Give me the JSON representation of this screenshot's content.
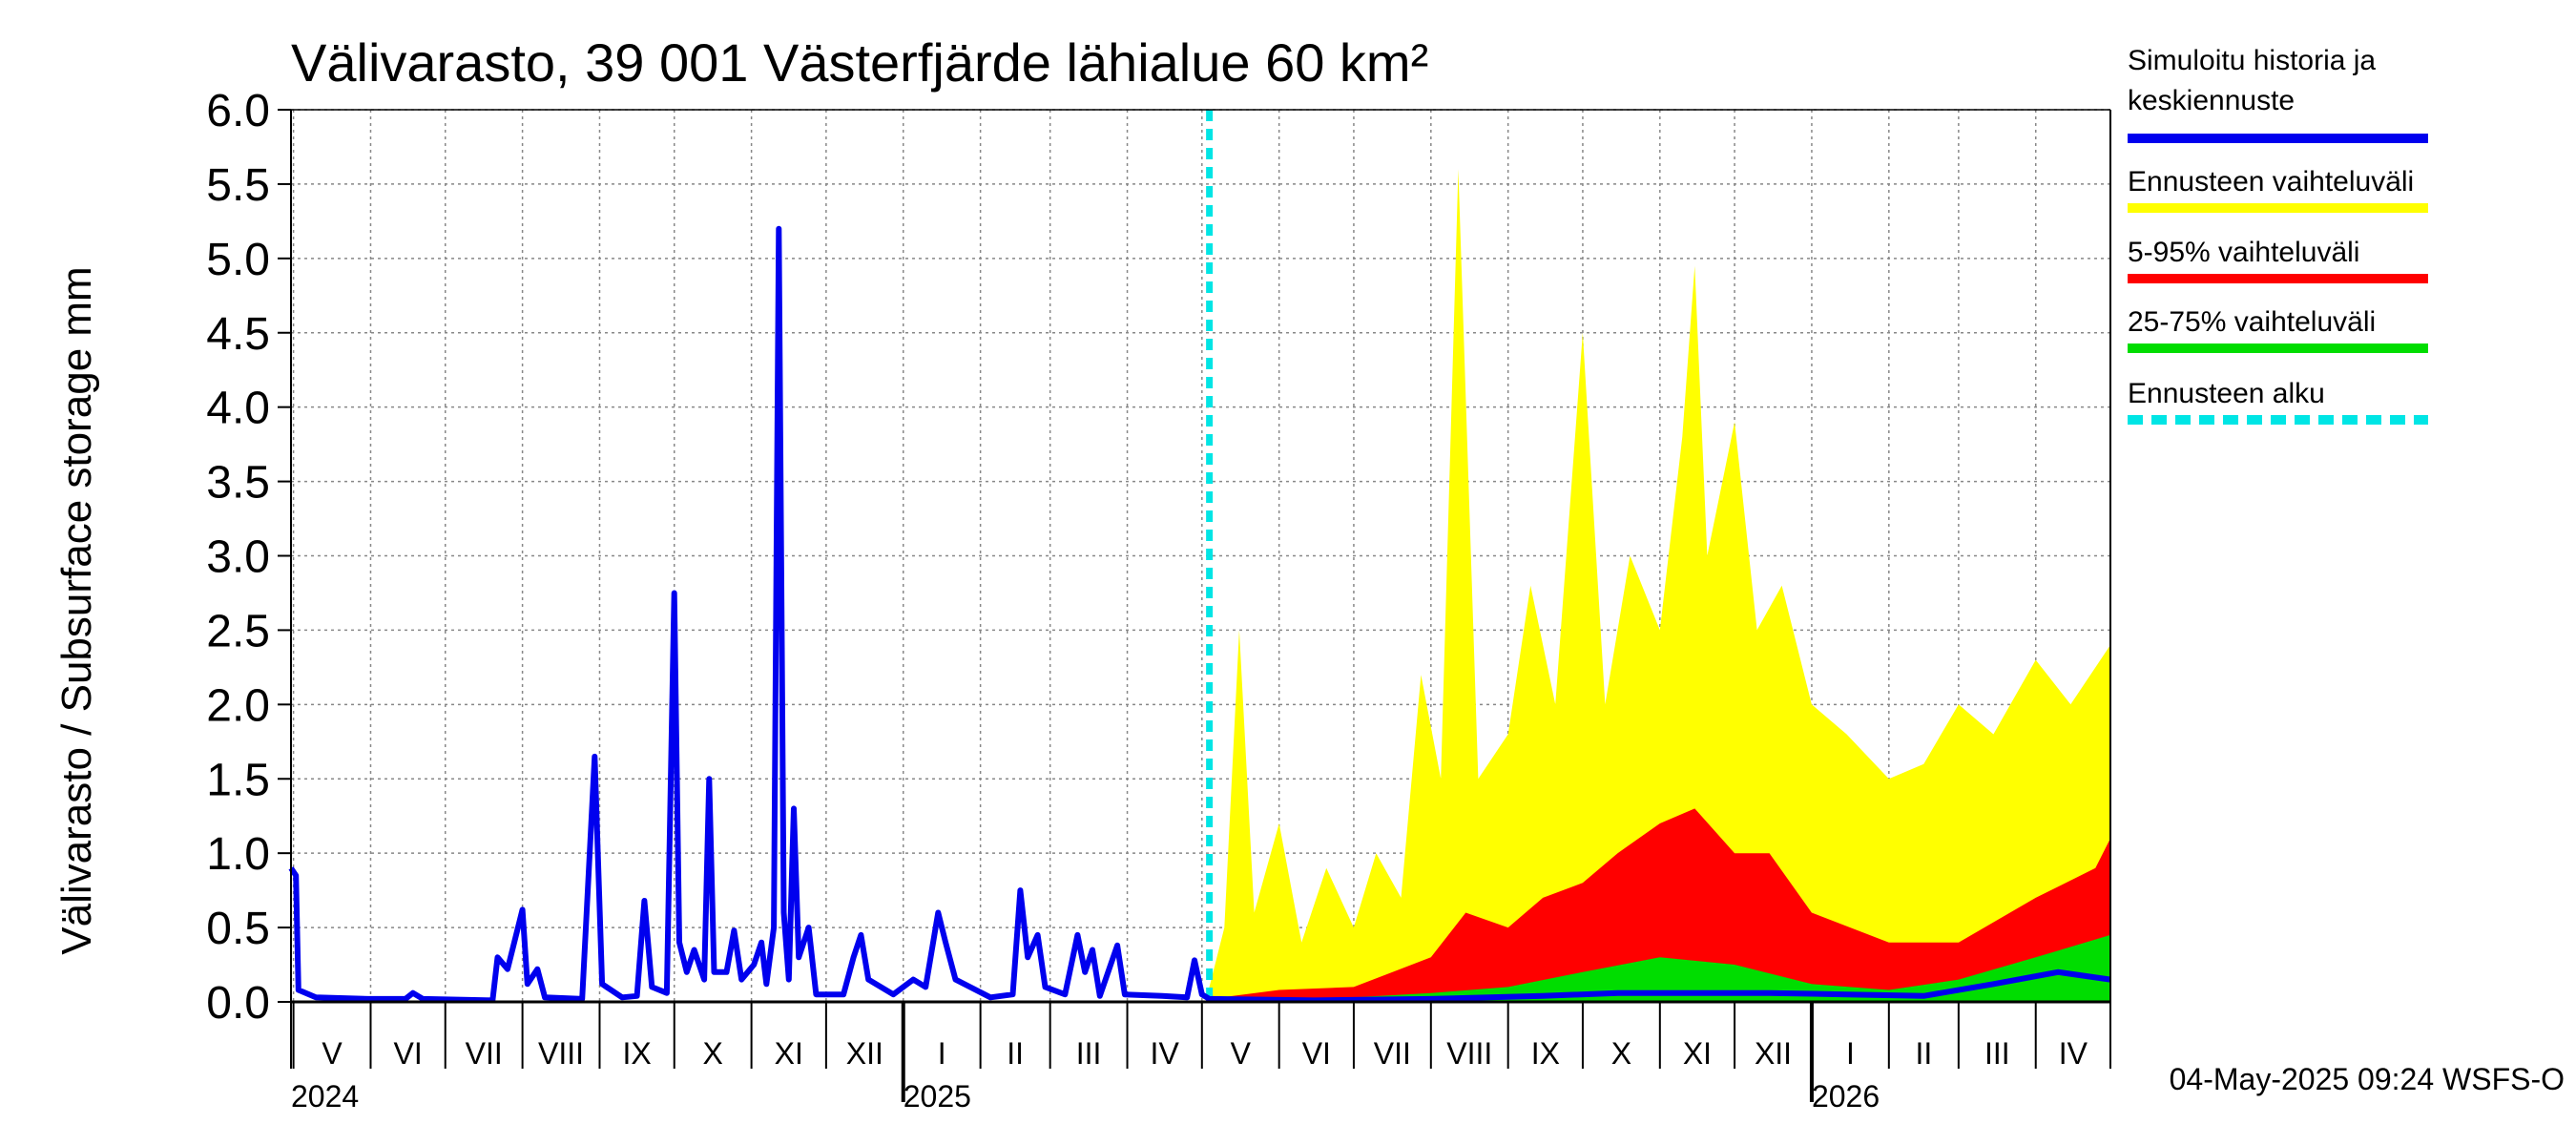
{
  "chart_data": {
    "type": "area",
    "title": "Välivarasto, 39 001 Västerfjärde lähialue 60 km²",
    "ylabel": "Välivarasto / Subsurface storage  mm",
    "ylim": [
      0,
      6
    ],
    "y_ticks": [
      "0.0",
      "0.5",
      "1.0",
      "1.5",
      "2.0",
      "2.5",
      "3.0",
      "3.5",
      "4.0",
      "4.5",
      "5.0",
      "5.5",
      "6.0"
    ],
    "x_range": [
      "2024-04-30",
      "2026-05-01"
    ],
    "forecast_start": "2025-05-04",
    "grid": true,
    "legend_position": "right",
    "months": [
      {
        "label": "V",
        "start": "2024-05-01"
      },
      {
        "label": "VI",
        "start": "2024-06-01"
      },
      {
        "label": "VII",
        "start": "2024-07-01"
      },
      {
        "label": "VIII",
        "start": "2024-08-01"
      },
      {
        "label": "IX",
        "start": "2024-09-01"
      },
      {
        "label": "X",
        "start": "2024-10-01"
      },
      {
        "label": "XI",
        "start": "2024-11-01"
      },
      {
        "label": "XII",
        "start": "2024-12-01"
      },
      {
        "label": "I",
        "start": "2025-01-01"
      },
      {
        "label": "II",
        "start": "2025-02-01"
      },
      {
        "label": "III",
        "start": "2025-03-01"
      },
      {
        "label": "IV",
        "start": "2025-04-01"
      },
      {
        "label": "V",
        "start": "2025-05-01"
      },
      {
        "label": "VI",
        "start": "2025-06-01"
      },
      {
        "label": "VII",
        "start": "2025-07-01"
      },
      {
        "label": "VIII",
        "start": "2025-08-01"
      },
      {
        "label": "IX",
        "start": "2025-09-01"
      },
      {
        "label": "X",
        "start": "2025-10-01"
      },
      {
        "label": "XI",
        "start": "2025-11-01"
      },
      {
        "label": "XII",
        "start": "2025-12-01"
      },
      {
        "label": "I",
        "start": "2026-01-01"
      },
      {
        "label": "II",
        "start": "2026-02-01"
      },
      {
        "label": "III",
        "start": "2026-03-01"
      },
      {
        "label": "IV",
        "start": "2026-04-01"
      }
    ],
    "years": [
      {
        "label": "2024",
        "date": "2024-05-01"
      },
      {
        "label": "2025",
        "date": "2025-01-01"
      },
      {
        "label": "2026",
        "date": "2026-01-01"
      }
    ],
    "series": [
      {
        "name": "Simuloitu historia ja keskiennuste",
        "color": "#0000ee",
        "kind": "line",
        "points": [
          [
            "2024-04-30",
            0.9
          ],
          [
            "2024-05-02",
            0.85
          ],
          [
            "2024-05-03",
            0.08
          ],
          [
            "2024-05-10",
            0.03
          ],
          [
            "2024-05-31",
            0.02
          ],
          [
            "2024-06-15",
            0.02
          ],
          [
            "2024-06-18",
            0.06
          ],
          [
            "2024-06-22",
            0.02
          ],
          [
            "2024-07-20",
            0.01
          ],
          [
            "2024-07-22",
            0.3
          ],
          [
            "2024-07-26",
            0.22
          ],
          [
            "2024-08-01",
            0.62
          ],
          [
            "2024-08-03",
            0.12
          ],
          [
            "2024-08-07",
            0.22
          ],
          [
            "2024-08-10",
            0.03
          ],
          [
            "2024-08-25",
            0.02
          ],
          [
            "2024-08-30",
            1.65
          ],
          [
            "2024-09-02",
            0.12
          ],
          [
            "2024-09-10",
            0.03
          ],
          [
            "2024-09-16",
            0.04
          ],
          [
            "2024-09-19",
            0.68
          ],
          [
            "2024-09-22",
            0.1
          ],
          [
            "2024-09-28",
            0.06
          ],
          [
            "2024-10-01",
            2.75
          ],
          [
            "2024-10-03",
            0.4
          ],
          [
            "2024-10-06",
            0.2
          ],
          [
            "2024-10-09",
            0.35
          ],
          [
            "2024-10-13",
            0.15
          ],
          [
            "2024-10-15",
            1.5
          ],
          [
            "2024-10-17",
            0.2
          ],
          [
            "2024-10-22",
            0.2
          ],
          [
            "2024-10-25",
            0.48
          ],
          [
            "2024-10-28",
            0.15
          ],
          [
            "2024-11-02",
            0.25
          ],
          [
            "2024-11-05",
            0.4
          ],
          [
            "2024-11-07",
            0.12
          ],
          [
            "2024-11-10",
            0.5
          ],
          [
            "2024-11-12",
            5.2
          ],
          [
            "2024-11-14",
            0.6
          ],
          [
            "2024-11-16",
            0.15
          ],
          [
            "2024-11-18",
            1.3
          ],
          [
            "2024-11-20",
            0.3
          ],
          [
            "2024-11-24",
            0.5
          ],
          [
            "2024-11-27",
            0.05
          ],
          [
            "2024-12-08",
            0.05
          ],
          [
            "2024-12-12",
            0.3
          ],
          [
            "2024-12-15",
            0.45
          ],
          [
            "2024-12-18",
            0.15
          ],
          [
            "2024-12-28",
            0.05
          ],
          [
            "2025-01-05",
            0.15
          ],
          [
            "2025-01-10",
            0.1
          ],
          [
            "2025-01-15",
            0.6
          ],
          [
            "2025-01-18",
            0.4
          ],
          [
            "2025-01-22",
            0.15
          ],
          [
            "2025-02-05",
            0.03
          ],
          [
            "2025-02-14",
            0.05
          ],
          [
            "2025-02-17",
            0.75
          ],
          [
            "2025-02-20",
            0.3
          ],
          [
            "2025-02-24",
            0.45
          ],
          [
            "2025-02-27",
            0.1
          ],
          [
            "2025-03-07",
            0.05
          ],
          [
            "2025-03-12",
            0.45
          ],
          [
            "2025-03-15",
            0.2
          ],
          [
            "2025-03-18",
            0.35
          ],
          [
            "2025-03-21",
            0.04
          ],
          [
            "2025-03-28",
            0.38
          ],
          [
            "2025-03-31",
            0.05
          ],
          [
            "2025-04-15",
            0.04
          ],
          [
            "2025-04-25",
            0.03
          ],
          [
            "2025-04-28",
            0.28
          ],
          [
            "2025-05-01",
            0.05
          ],
          [
            "2025-05-04",
            0.02
          ],
          [
            "2025-06-15",
            0.01
          ],
          [
            "2025-08-01",
            0.02
          ],
          [
            "2025-09-15",
            0.04
          ],
          [
            "2025-10-15",
            0.06
          ],
          [
            "2025-11-15",
            0.06
          ],
          [
            "2025-12-15",
            0.06
          ],
          [
            "2026-01-15",
            0.05
          ],
          [
            "2026-02-15",
            0.04
          ],
          [
            "2026-03-15",
            0.12
          ],
          [
            "2026-04-10",
            0.2
          ],
          [
            "2026-05-01",
            0.15
          ]
        ]
      },
      {
        "name": "Ennusteen vaihteluväli",
        "color": "#ffff00",
        "kind": "band",
        "points": [
          [
            "2025-05-04",
            0.1
          ],
          [
            "2025-05-10",
            0.5
          ],
          [
            "2025-05-16",
            2.5
          ],
          [
            "2025-05-22",
            0.6
          ],
          [
            "2025-06-01",
            1.2
          ],
          [
            "2025-06-10",
            0.4
          ],
          [
            "2025-06-20",
            0.9
          ],
          [
            "2025-07-01",
            0.5
          ],
          [
            "2025-07-10",
            1.0
          ],
          [
            "2025-07-20",
            0.7
          ],
          [
            "2025-07-28",
            2.2
          ],
          [
            "2025-08-05",
            1.5
          ],
          [
            "2025-08-12",
            5.6
          ],
          [
            "2025-08-20",
            1.5
          ],
          [
            "2025-09-01",
            1.8
          ],
          [
            "2025-09-10",
            2.8
          ],
          [
            "2025-09-20",
            2.0
          ],
          [
            "2025-10-01",
            4.5
          ],
          [
            "2025-10-10",
            2.0
          ],
          [
            "2025-10-20",
            3.0
          ],
          [
            "2025-11-01",
            2.5
          ],
          [
            "2025-11-10",
            3.8
          ],
          [
            "2025-11-15",
            4.95
          ],
          [
            "2025-11-20",
            3.0
          ],
          [
            "2025-12-01",
            3.9
          ],
          [
            "2025-12-10",
            2.5
          ],
          [
            "2025-12-20",
            2.8
          ],
          [
            "2026-01-01",
            2.0
          ],
          [
            "2026-01-15",
            1.8
          ],
          [
            "2026-02-01",
            1.5
          ],
          [
            "2026-02-15",
            1.6
          ],
          [
            "2026-03-01",
            2.0
          ],
          [
            "2026-03-15",
            1.8
          ],
          [
            "2026-04-01",
            2.3
          ],
          [
            "2026-04-15",
            2.0
          ],
          [
            "2026-05-01",
            2.4
          ]
        ]
      },
      {
        "name": "5-95% vaihteluväli",
        "color": "#ff0000",
        "kind": "band",
        "points": [
          [
            "2025-05-04",
            0.02
          ],
          [
            "2025-06-01",
            0.08
          ],
          [
            "2025-07-01",
            0.1
          ],
          [
            "2025-08-01",
            0.3
          ],
          [
            "2025-08-15",
            0.6
          ],
          [
            "2025-09-01",
            0.5
          ],
          [
            "2025-09-15",
            0.7
          ],
          [
            "2025-10-01",
            0.8
          ],
          [
            "2025-10-15",
            1.0
          ],
          [
            "2025-11-01",
            1.2
          ],
          [
            "2025-11-15",
            1.3
          ],
          [
            "2025-12-01",
            1.0
          ],
          [
            "2025-12-15",
            1.0
          ],
          [
            "2026-01-01",
            0.6
          ],
          [
            "2026-02-01",
            0.4
          ],
          [
            "2026-03-01",
            0.4
          ],
          [
            "2026-04-01",
            0.7
          ],
          [
            "2026-04-25",
            0.9
          ],
          [
            "2026-05-01",
            1.1
          ]
        ]
      },
      {
        "name": "25-75% vaihteluväli",
        "color": "#00dd00",
        "kind": "band",
        "points": [
          [
            "2025-05-04",
            0.02
          ],
          [
            "2025-07-01",
            0.03
          ],
          [
            "2025-08-01",
            0.06
          ],
          [
            "2025-09-01",
            0.1
          ],
          [
            "2025-10-01",
            0.2
          ],
          [
            "2025-11-01",
            0.3
          ],
          [
            "2025-12-01",
            0.25
          ],
          [
            "2026-01-01",
            0.12
          ],
          [
            "2026-02-01",
            0.08
          ],
          [
            "2026-03-01",
            0.15
          ],
          [
            "2026-04-01",
            0.3
          ],
          [
            "2026-05-01",
            0.45
          ]
        ]
      },
      {
        "name": "Ennusteen alku",
        "color": "#00e5e5",
        "kind": "vline",
        "date": "2025-05-04"
      }
    ],
    "legend": [
      {
        "label": "Simuloitu historia ja keskiennuste",
        "color": "#0000ee",
        "style": "solid"
      },
      {
        "label": "Ennusteen vaihteluväli",
        "color": "#ffff00",
        "style": "solid"
      },
      {
        "label": "5-95% vaihteluväli",
        "color": "#ff0000",
        "style": "solid"
      },
      {
        "label": "25-75% vaihteluväli",
        "color": "#00dd00",
        "style": "solid"
      },
      {
        "label": "Ennusteen alku",
        "color": "#00e5e5",
        "style": "dashed"
      }
    ],
    "footer": "04-May-2025 09:24 WSFS-O"
  }
}
